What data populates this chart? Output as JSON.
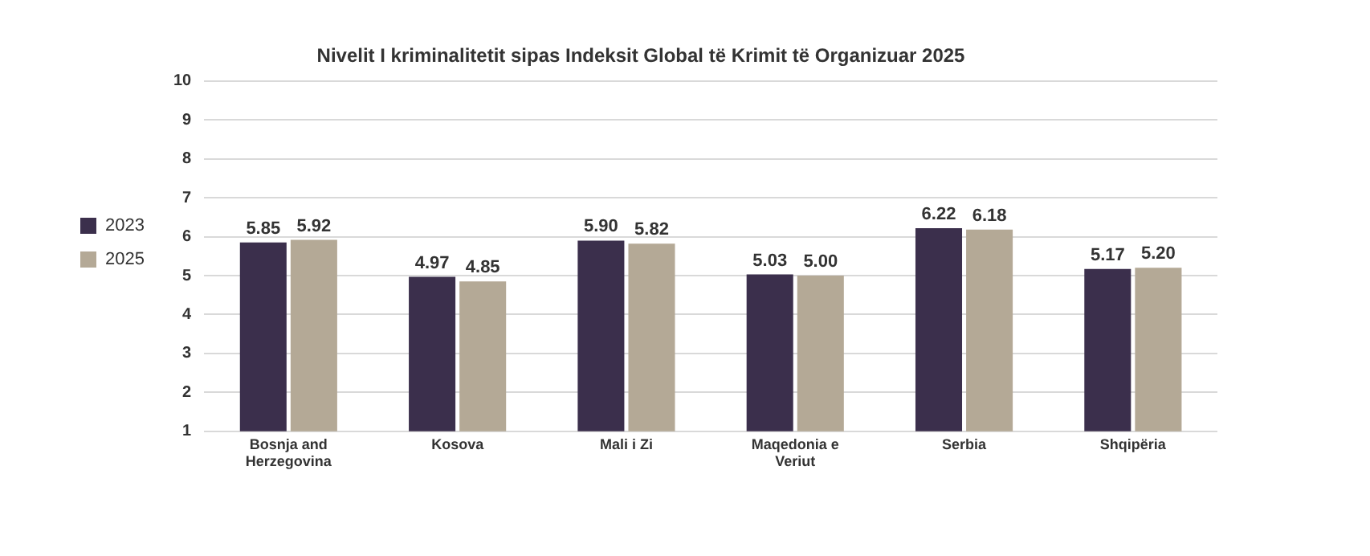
{
  "chart_data": {
    "type": "bar",
    "title": "Nivelit I kriminalitetit sipas Indeksit Global të Krimit të Organizuar 2025",
    "categories": [
      "Bosnja and Herzegovina",
      "Kosova",
      "Mali i Zi",
      "Maqedonia e Veriut",
      "Serbia",
      "Shqipëria"
    ],
    "series": [
      {
        "name": "2023",
        "color": "#3b2f4c",
        "values": [
          5.85,
          4.97,
          5.9,
          5.03,
          6.22,
          5.17
        ],
        "value_labels": [
          "5.85",
          "4.97",
          "5.90",
          "5.03",
          "6.22",
          "5.17"
        ]
      },
      {
        "name": "2025",
        "color": "#b4a996",
        "values": [
          5.92,
          4.85,
          5.82,
          5.0,
          6.18,
          5.2
        ],
        "value_labels": [
          "5.92",
          "4.85",
          "5.82",
          "5.00",
          "6.18",
          "5.20"
        ]
      }
    ],
    "ylim": [
      1,
      10
    ],
    "yticks": [
      1,
      2,
      3,
      4,
      5,
      6,
      7,
      8,
      9,
      10
    ],
    "grid": "y",
    "legend": "left"
  }
}
